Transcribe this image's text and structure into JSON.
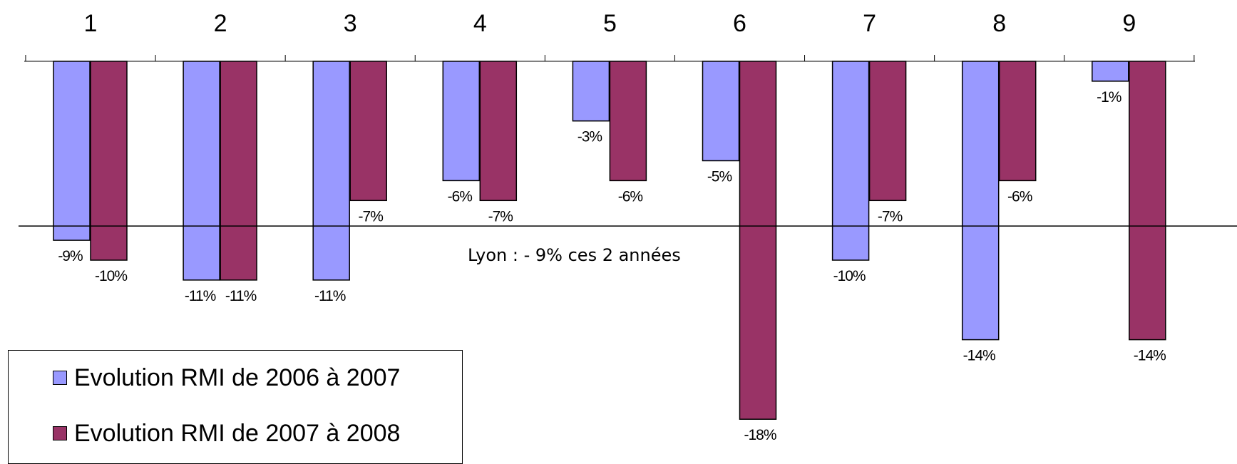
{
  "chart_data": {
    "type": "bar",
    "categories": [
      "1",
      "2",
      "3",
      "4",
      "5",
      "6",
      "7",
      "8",
      "9"
    ],
    "series": [
      {
        "name": "Evolution RMI de 2006 à 2007",
        "color": "#9999ff",
        "values": [
          -9,
          -11,
          -11,
          -6,
          -3,
          -5,
          -10,
          -14,
          -1
        ],
        "labels": [
          "-9%",
          "-11%",
          "-11%",
          "-6%",
          "-3%",
          "-5%",
          "-10%",
          "-14%",
          "-1%"
        ]
      },
      {
        "name": "Evolution RMI de 2007 à 2008",
        "color": "#993366",
        "values": [
          -10,
          -11,
          -7,
          -7,
          -6,
          -18,
          -7,
          -6,
          -14
        ],
        "labels": [
          "-10%",
          "-11%",
          "-7%",
          "-7%",
          "-6%",
          "-18%",
          "-7%",
          "-6%",
          "-14%"
        ]
      }
    ],
    "reference_line": {
      "value": -9,
      "label": "Lyon : - 9% ces 2 années"
    },
    "ylim": [
      -18,
      0
    ],
    "legend_position": "bottom-left",
    "grid": false
  }
}
